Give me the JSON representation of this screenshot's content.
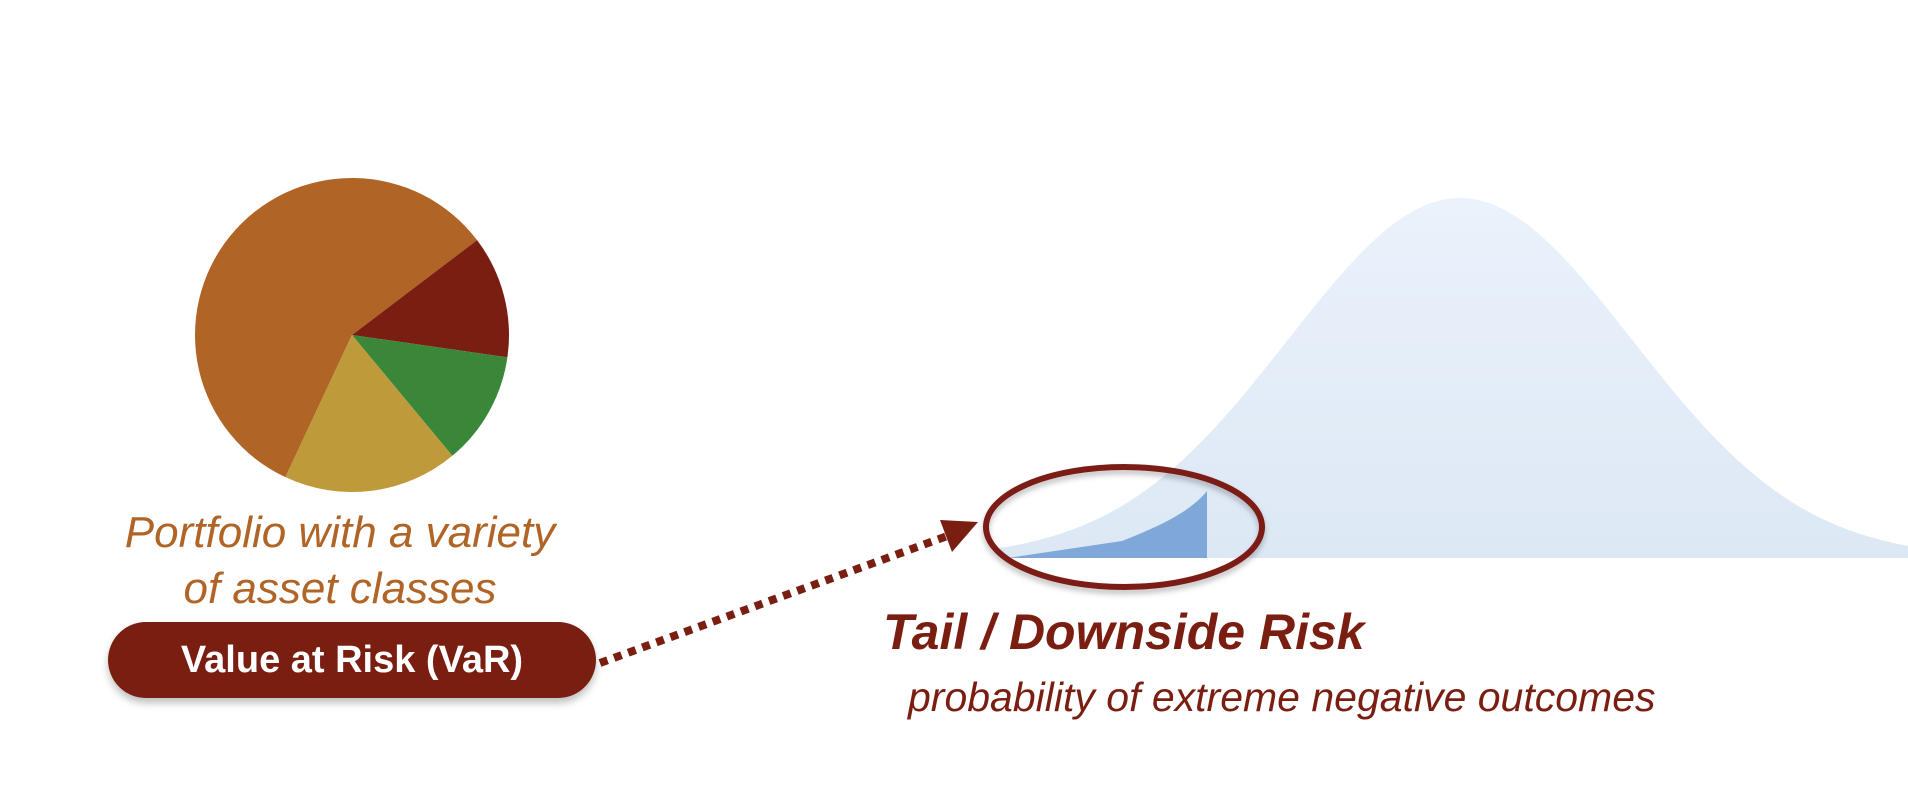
{
  "portfolio": {
    "caption_line1": "Portfolio with a variety",
    "caption_line2": "of asset classes",
    "slices": [
      {
        "color": "#b06426",
        "share": 0.577
      },
      {
        "color": "#7b1e12",
        "share": 0.126
      },
      {
        "color": "#3a873a",
        "share": 0.117
      },
      {
        "color": "#be9a3b",
        "share": 0.18
      }
    ]
  },
  "var_button": {
    "label": "Value at Risk (VaR)"
  },
  "tail": {
    "title": "Tail / Downside Risk",
    "subtitle": "probability of extreme negative outcomes"
  },
  "colors": {
    "accent": "#7b1e12",
    "distribution_fill": "#e2ecf7",
    "tail_fill": "#7fa8d8"
  }
}
